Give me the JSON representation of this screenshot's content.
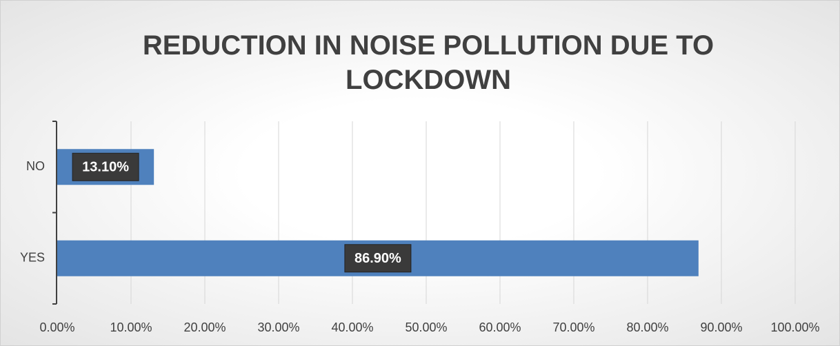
{
  "chart_data": {
    "type": "hbar",
    "title": "REDUCTION IN NOISE POLLUTION DUE TO LOCKDOWN",
    "categories": [
      "NO",
      "YES"
    ],
    "values": [
      13.1,
      86.9
    ],
    "value_labels": [
      "13.10%",
      "86.90%"
    ],
    "color": "#4f81bd",
    "xlim": [
      0,
      100
    ],
    "xticks": [
      {
        "value": 0,
        "label": "0.00%"
      },
      {
        "value": 10,
        "label": "10.00%"
      },
      {
        "value": 20,
        "label": "20.00%"
      },
      {
        "value": 30,
        "label": "30.00%"
      },
      {
        "value": 40,
        "label": "40.00%"
      },
      {
        "value": 50,
        "label": "50.00%"
      },
      {
        "value": 60,
        "label": "60.00%"
      },
      {
        "value": 70,
        "label": "70.00%"
      },
      {
        "value": 80,
        "label": "80.00%"
      },
      {
        "value": 90,
        "label": "90.00%"
      },
      {
        "value": 100,
        "label": "100.00%"
      }
    ],
    "grid": true
  }
}
